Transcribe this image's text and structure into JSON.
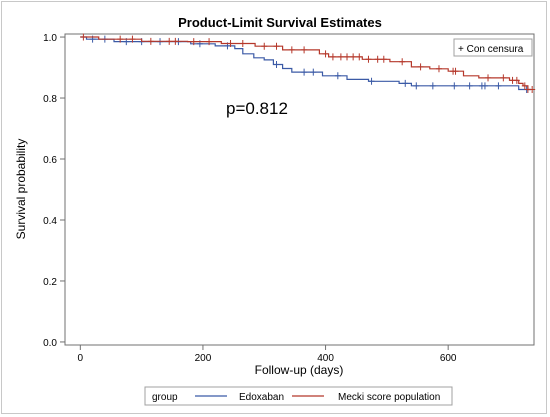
{
  "chart_data": {
    "type": "line",
    "title": "Product-Limit Survival Estimates",
    "xlabel": "Follow-up (days)",
    "ylabel": "Survival probability",
    "xlim": [
      -25,
      740
    ],
    "ylim": [
      -0.01,
      1.01
    ],
    "x_ticks": [
      0,
      200,
      400,
      600
    ],
    "y_ticks": [
      0.0,
      0.2,
      0.4,
      0.6,
      0.8,
      1.0
    ],
    "y_tick_labels": [
      "0.0",
      "0.2",
      "0.4",
      "0.6",
      "0.8",
      "1.0"
    ],
    "annotation": "p=0.812",
    "censor_legend": "+ Con censura",
    "legend_title": "group",
    "grid": false,
    "series": [
      {
        "name": "Edoxaban",
        "color": "#3b5aa6",
        "steps": [
          [
            0,
            1.0
          ],
          [
            10,
            0.993
          ],
          [
            55,
            0.985
          ],
          [
            180,
            0.978
          ],
          [
            220,
            0.971
          ],
          [
            252,
            0.962
          ],
          [
            265,
            0.945
          ],
          [
            283,
            0.932
          ],
          [
            300,
            0.925
          ],
          [
            315,
            0.91
          ],
          [
            330,
            0.897
          ],
          [
            345,
            0.885
          ],
          [
            395,
            0.873
          ],
          [
            435,
            0.861
          ],
          [
            470,
            0.855
          ],
          [
            520,
            0.848
          ],
          [
            540,
            0.84
          ],
          [
            715,
            0.828
          ],
          [
            735,
            0.828
          ]
        ],
        "censored": [
          [
            20,
            0.993
          ],
          [
            40,
            0.993
          ],
          [
            75,
            0.985
          ],
          [
            100,
            0.985
          ],
          [
            130,
            0.985
          ],
          [
            160,
            0.985
          ],
          [
            195,
            0.978
          ],
          [
            240,
            0.971
          ],
          [
            320,
            0.91
          ],
          [
            365,
            0.885
          ],
          [
            380,
            0.885
          ],
          [
            420,
            0.873
          ],
          [
            475,
            0.855
          ],
          [
            530,
            0.848
          ],
          [
            548,
            0.84
          ],
          [
            575,
            0.84
          ],
          [
            610,
            0.84
          ],
          [
            635,
            0.84
          ],
          [
            655,
            0.84
          ],
          [
            660,
            0.84
          ],
          [
            682,
            0.84
          ],
          [
            728,
            0.828
          ]
        ]
      },
      {
        "name": "Mecki score population",
        "color": "#b5382b",
        "steps": [
          [
            0,
            1.0
          ],
          [
            30,
            0.993
          ],
          [
            100,
            0.986
          ],
          [
            175,
            0.985
          ],
          [
            230,
            0.979
          ],
          [
            285,
            0.97
          ],
          [
            330,
            0.958
          ],
          [
            390,
            0.945
          ],
          [
            405,
            0.935
          ],
          [
            460,
            0.927
          ],
          [
            505,
            0.919
          ],
          [
            540,
            0.902
          ],
          [
            570,
            0.896
          ],
          [
            600,
            0.888
          ],
          [
            625,
            0.873
          ],
          [
            650,
            0.866
          ],
          [
            700,
            0.858
          ],
          [
            715,
            0.848
          ],
          [
            722,
            0.84
          ],
          [
            730,
            0.828
          ],
          [
            735,
            0.828
          ]
        ],
        "censored": [
          [
            5,
            1.0
          ],
          [
            65,
            0.993
          ],
          [
            85,
            0.993
          ],
          [
            115,
            0.986
          ],
          [
            145,
            0.986
          ],
          [
            155,
            0.986
          ],
          [
            185,
            0.985
          ],
          [
            210,
            0.985
          ],
          [
            245,
            0.979
          ],
          [
            265,
            0.979
          ],
          [
            300,
            0.97
          ],
          [
            320,
            0.97
          ],
          [
            345,
            0.958
          ],
          [
            365,
            0.958
          ],
          [
            400,
            0.945
          ],
          [
            412,
            0.935
          ],
          [
            425,
            0.935
          ],
          [
            435,
            0.935
          ],
          [
            445,
            0.935
          ],
          [
            455,
            0.935
          ],
          [
            470,
            0.927
          ],
          [
            485,
            0.927
          ],
          [
            495,
            0.927
          ],
          [
            525,
            0.919
          ],
          [
            555,
            0.902
          ],
          [
            585,
            0.896
          ],
          [
            608,
            0.888
          ],
          [
            612,
            0.888
          ],
          [
            665,
            0.866
          ],
          [
            690,
            0.866
          ],
          [
            705,
            0.858
          ],
          [
            712,
            0.858
          ],
          [
            725,
            0.84
          ],
          [
            730,
            0.828
          ],
          [
            737,
            0.828
          ]
        ]
      }
    ]
  }
}
